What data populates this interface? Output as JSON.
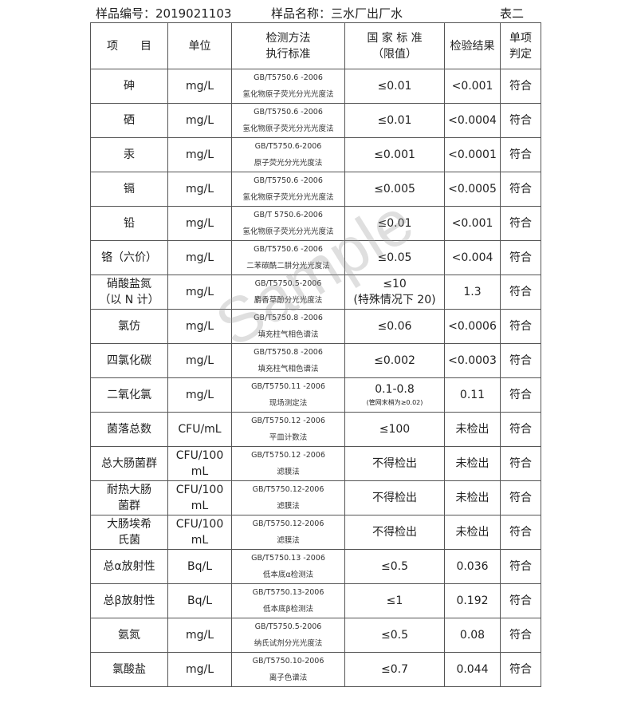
{
  "header": {
    "sample_no": "样品编号：2019021103",
    "sample_name": "样品名称：三水厂出厂水",
    "table_no": "表二"
  },
  "columns": [
    "项　　目",
    "单位",
    "检测方法\n执行标准",
    "国 家 标 准\n（限值）",
    "检验结果",
    "单项\n判定"
  ],
  "rows": [
    {
      "item": "砷",
      "unit": "mg/L",
      "std": "GB/T5750.6 -2006",
      "method": "氢化物原子荧光分光光度法",
      "limit": "≤0.01",
      "result": "<0.001",
      "judge": "符合"
    },
    {
      "item": "硒",
      "unit": "mg/L",
      "std": "GB/T5750.6 -2006",
      "method": "氢化物原子荧光分光光度法",
      "limit": "≤0.01",
      "result": "<0.0004",
      "judge": "符合"
    },
    {
      "item": "汞",
      "unit": "mg/L",
      "std": "GB/T5750.6-2006",
      "method": "原子荧光分光光度法",
      "limit": "≤0.001",
      "result": "<0.0001",
      "judge": "符合"
    },
    {
      "item": "镉",
      "unit": "mg/L",
      "std": "GB/T5750.6 -2006",
      "method": "氢化物原子荧光分光光度法",
      "limit": "≤0.005",
      "result": "<0.0005",
      "judge": "符合"
    },
    {
      "item": "铅",
      "unit": "mg/L",
      "std": "GB/T 5750.6-2006",
      "method": "氢化物原子荧光分光光度法",
      "limit": "≤0.01",
      "result": "<0.001",
      "judge": "符合"
    },
    {
      "item": "铬（六价）",
      "unit": "mg/L",
      "std": "GB/T5750.6 -2006",
      "method": "二苯碳酰二肼分光光度法",
      "limit": "≤0.05",
      "result": "<0.004",
      "judge": "符合"
    },
    {
      "item": "硝酸盐氮\n（以 N 计）",
      "unit": "mg/L",
      "std": "GB/T5750.5-2006",
      "method": "麝香草酚分光光度法",
      "limit": "≤10\n(特殊情况下 20)",
      "result": "1.3",
      "judge": "符合"
    },
    {
      "item": "氯仿",
      "unit": "mg/L",
      "std": "GB/T5750.8 -2006",
      "method": "填充柱气相色谱法",
      "limit": "≤0.06",
      "result": "<0.0006",
      "judge": "符合"
    },
    {
      "item": "四氯化碳",
      "unit": "mg/L",
      "std": "GB/T5750.8 -2006",
      "method": "填充柱气相色谱法",
      "limit": "≤0.002",
      "result": "<0.0003",
      "judge": "符合"
    },
    {
      "item": "二氧化氯",
      "unit": "mg/L",
      "std": "GB/T5750.11 -2006",
      "method": "现场测定法",
      "limit": "0.1-0.8",
      "limit_note": "(管网末梢为≥0.02)",
      "result": "0.11",
      "judge": "符合"
    },
    {
      "item": "菌落总数",
      "unit": "CFU/mL",
      "std": "GB/T5750.12 -2006",
      "method": "平皿计数法",
      "limit": "≤100",
      "result": "未检出",
      "judge": "符合"
    },
    {
      "item": "总大肠菌群",
      "unit": "CFU/100\nmL",
      "std": "GB/T5750.12 -2006",
      "method": "滤膜法",
      "limit": "不得检出",
      "result": "未检出",
      "judge": "符合"
    },
    {
      "item": "耐热大肠\n菌群",
      "unit": "CFU/100\nmL",
      "std": "GB/T5750.12-2006",
      "method": "滤膜法",
      "limit": "不得检出",
      "result": "未检出",
      "judge": "符合"
    },
    {
      "item": "大肠埃希\n氏菌",
      "unit": "CFU/100\nmL",
      "std": "GB/T5750.12-2006",
      "method": "滤膜法",
      "limit": "不得检出",
      "result": "未检出",
      "judge": "符合"
    },
    {
      "item": "总α放射性",
      "unit": "Bq/L",
      "std": "GB/T5750.13 -2006",
      "method": "低本底α检测法",
      "limit": "≤0.5",
      "result": "0.036",
      "judge": "符合"
    },
    {
      "item": "总β放射性",
      "unit": "Bq/L",
      "std": "GB/T5750.13-2006",
      "method": "低本底β检测法",
      "limit": "≤1",
      "result": "0.192",
      "judge": "符合"
    },
    {
      "item": "氨氮",
      "unit": "mg/L",
      "std": "GB/T5750.5-2006",
      "method": "纳氏试剂分光光度法",
      "limit": "≤0.5",
      "result": "0.08",
      "judge": "符合"
    },
    {
      "item": "氯酸盐",
      "unit": "mg/L",
      "std": "GB/T5750.10-2006",
      "method": "离子色谱法",
      "limit": "≤0.7",
      "result": "0.044",
      "judge": "符合"
    }
  ],
  "watermark": "Sample"
}
